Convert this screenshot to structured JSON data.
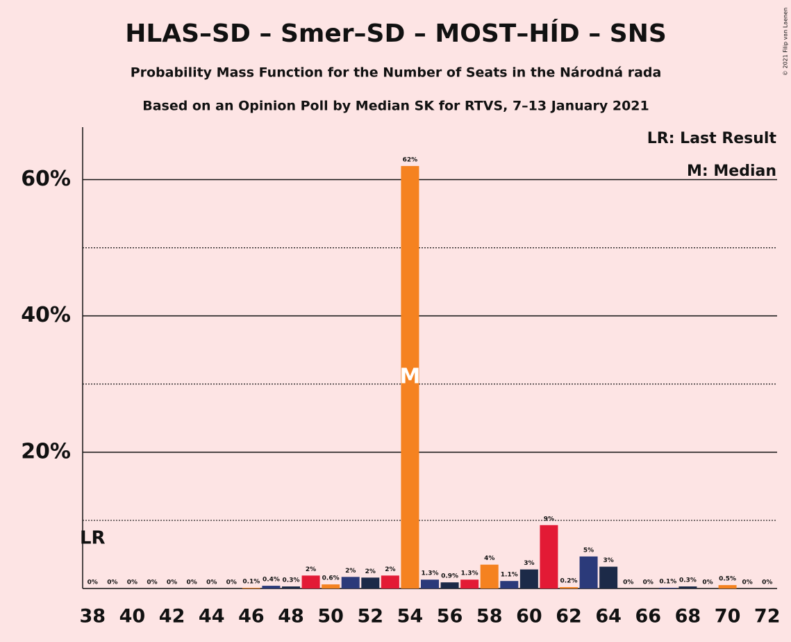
{
  "chart_data": {
    "type": "bar",
    "title": "HLAS–SD – Smer–SD – MOST–HÍD – SNS",
    "subtitle": "Probability Mass Function for the Number of Seats in the Národná rada",
    "subtitle2": "Based on an Opinion Poll by Median SK for RTVS, 7–13 January 2021",
    "copyright": "© 2021 Filip van Laenen",
    "legend": [
      "LR: Last Result",
      "M: Median"
    ],
    "legend_position": "top-right",
    "last_result_label": "LR",
    "median_label": "M",
    "last_result": 38,
    "median": 54,
    "categories": [
      38,
      null,
      40,
      null,
      42,
      null,
      44,
      null,
      46,
      null,
      48,
      null,
      50,
      null,
      52,
      null,
      54,
      null,
      56,
      null,
      58,
      null,
      60,
      null,
      62,
      null,
      64,
      null,
      66,
      null,
      68,
      null,
      70,
      null,
      72
    ],
    "values": [
      0,
      0,
      0,
      0,
      0,
      0,
      0,
      0,
      0.1,
      0.4,
      0.3,
      1.9,
      0.6,
      1.7,
      1.6,
      1.9,
      62,
      1.3,
      0.9,
      1.3,
      3.5,
      1.1,
      2.8,
      9.3,
      0.2,
      4.7,
      3.2,
      0,
      0,
      0.1,
      0.3,
      0,
      0.5,
      0,
      0
    ],
    "value_labels": [
      "0%",
      "0%",
      "0%",
      "0%",
      "0%",
      "0%",
      "0%",
      "0%",
      "0.1%",
      "0.4%",
      "0.3%",
      "2%",
      "0.6%",
      "2%",
      "2%",
      "2%",
      "62%",
      "1.3%",
      "0.9%",
      "1.3%",
      "4%",
      "1.1%",
      "3%",
      "9%",
      "0.2%",
      "5%",
      "3%",
      "0%",
      "0%",
      "0.1%",
      "0.3%",
      "0%",
      "0.5%",
      "0%",
      "0%"
    ],
    "colors": [
      "#f58220",
      "#2b3a7a",
      "#1c2a48",
      "#e31a35",
      "#f58220",
      "#2b3a7a",
      "#1c2a48",
      "#e31a35",
      "#f58220",
      "#2b3a7a",
      "#1c2a48",
      "#e31a35",
      "#f58220",
      "#2b3a7a",
      "#1c2a48",
      "#e31a35",
      "#f58220",
      "#2b3a7a",
      "#1c2a48",
      "#e31a35",
      "#f58220",
      "#2b3a7a",
      "#1c2a48",
      "#e31a35",
      "#f58220",
      "#2b3a7a",
      "#1c2a48",
      "#e31a35",
      "#f58220",
      "#2b3a7a",
      "#1c2a48",
      "#e31a35",
      "#f58220",
      "#2b3a7a",
      "#1c2a48"
    ],
    "ylim": [
      0,
      67.7
    ],
    "yticks": [
      {
        "value": 20,
        "label": "20%"
      },
      {
        "value": 40,
        "label": "40%"
      },
      {
        "value": 60,
        "label": "60%"
      }
    ],
    "minor_yticks": [
      10,
      30,
      50
    ],
    "grid": true
  }
}
